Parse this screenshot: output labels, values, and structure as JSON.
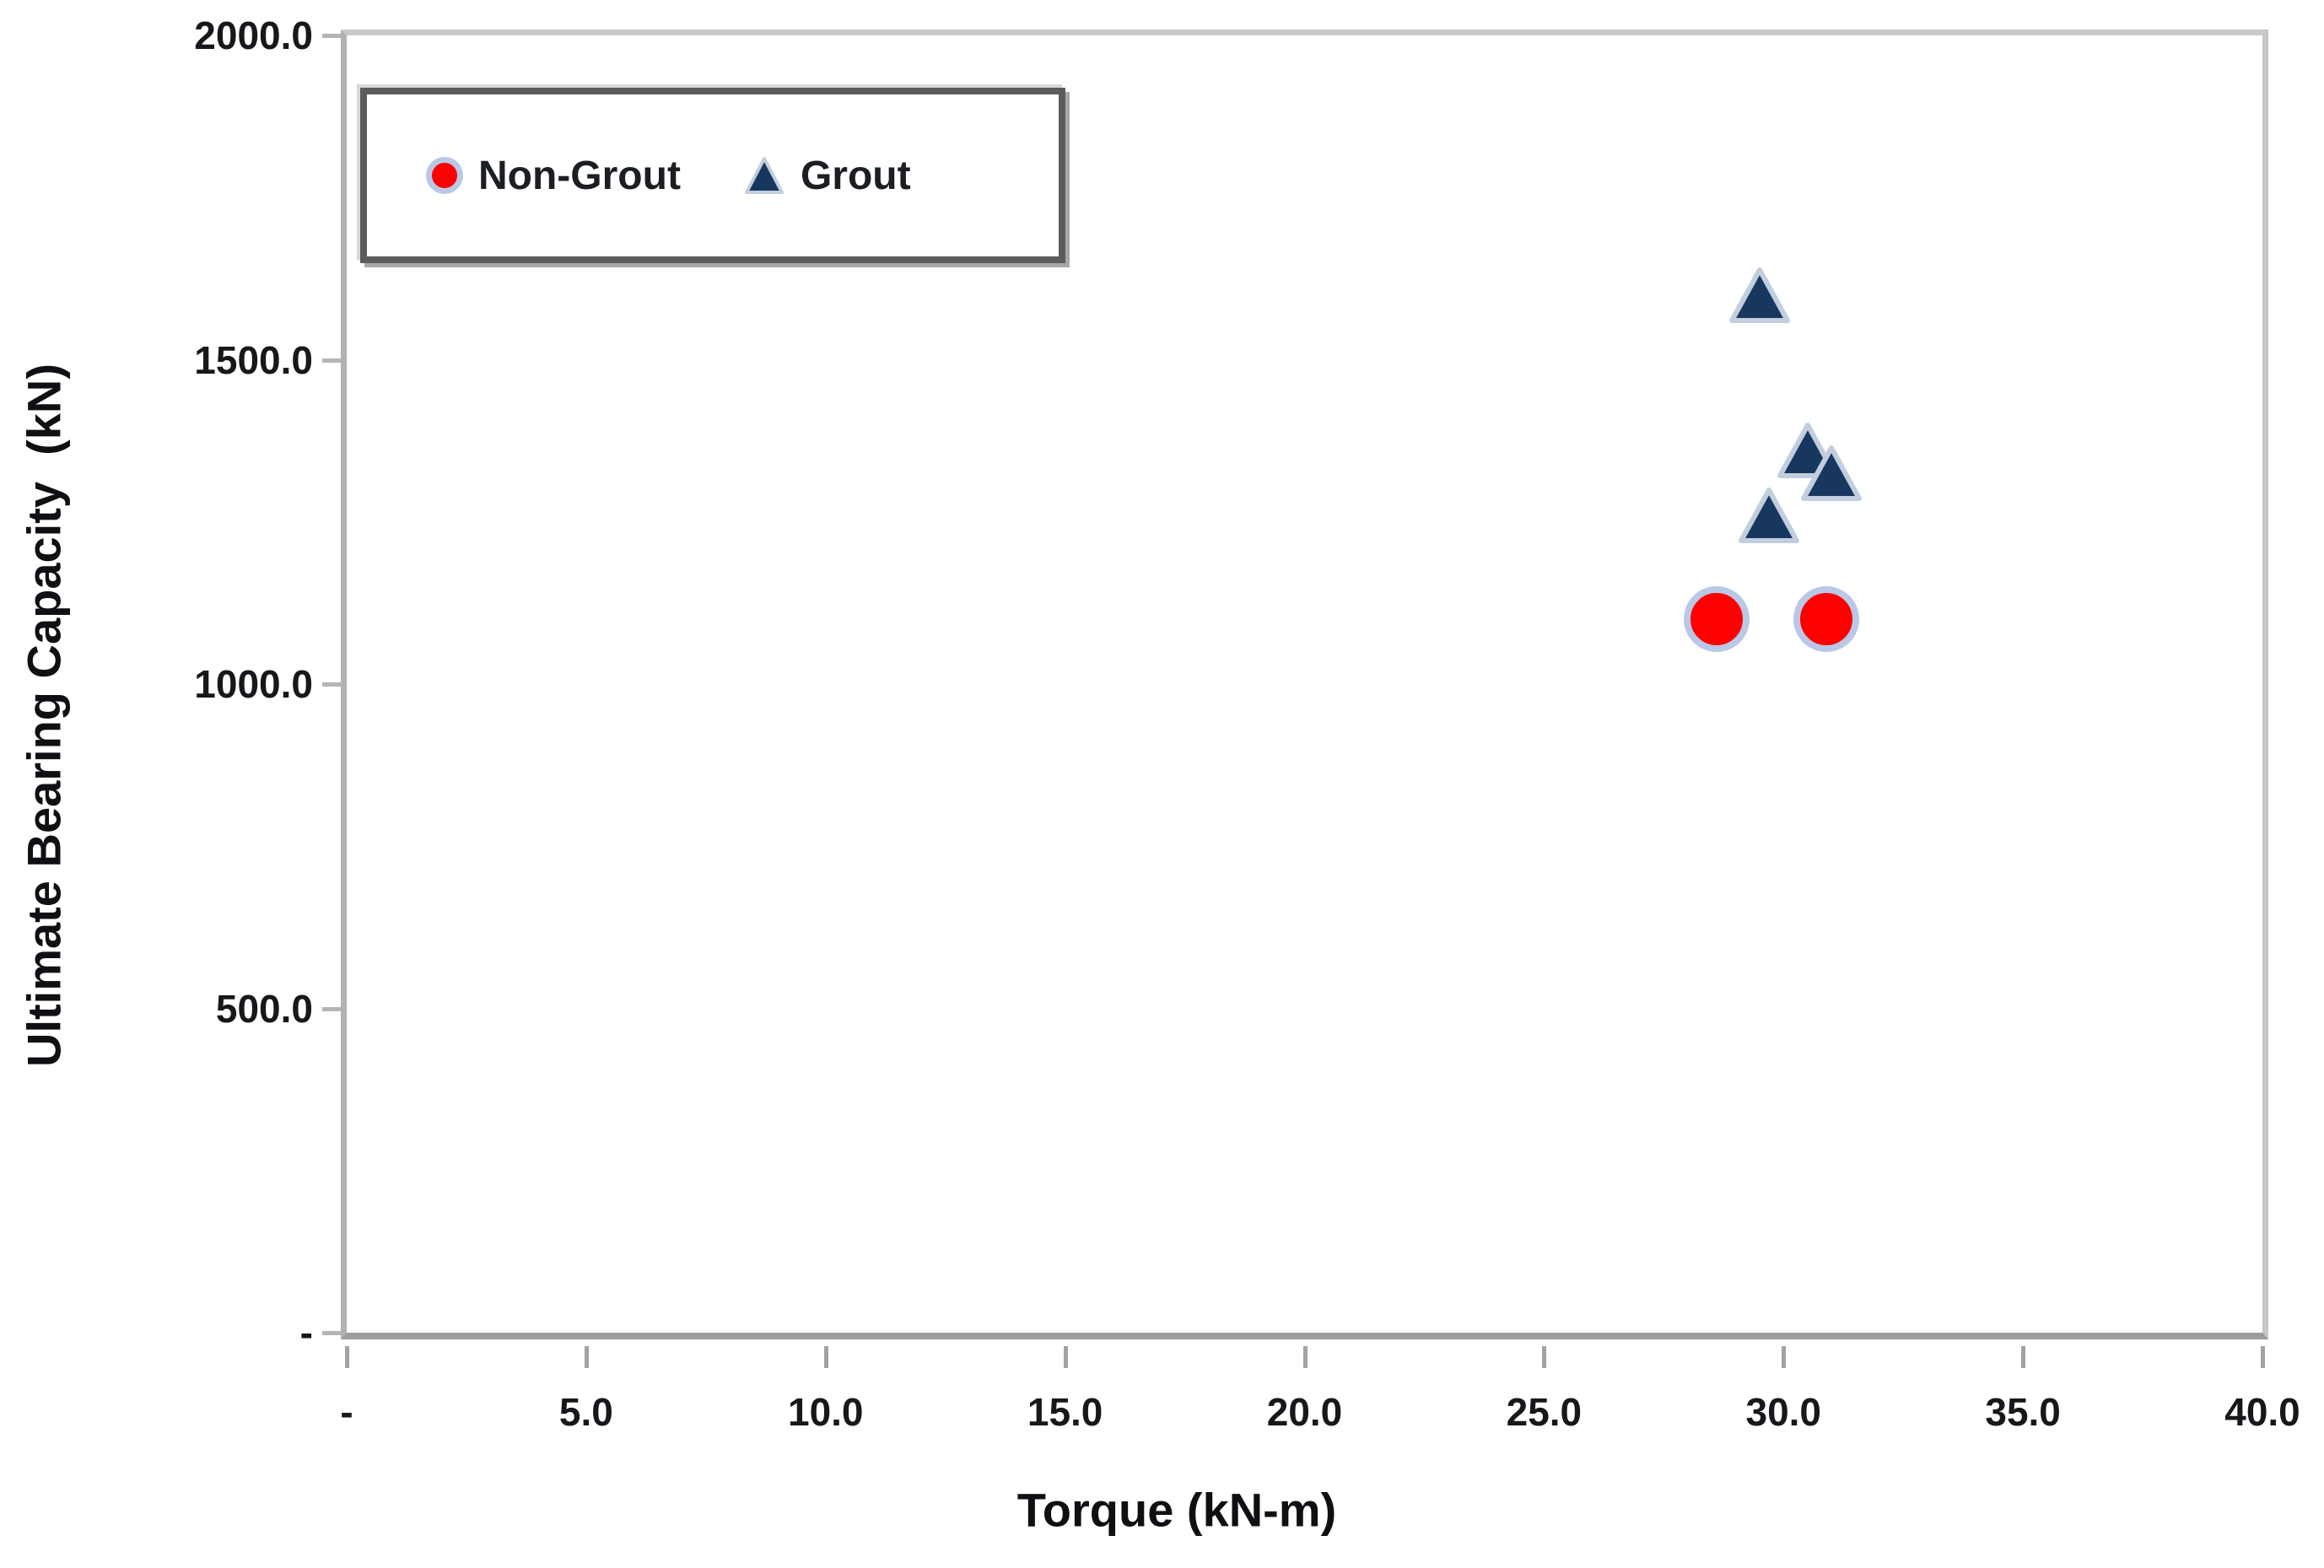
{
  "chart_data": {
    "type": "scatter",
    "title": "",
    "xlabel": "Torque (kN-m)",
    "ylabel": "Ultimate Bearing Capacity  (kN)",
    "xlim": [
      0,
      40
    ],
    "ylim": [
      0,
      2000
    ],
    "grid": false,
    "legend_position": "top-left",
    "x_ticks": {
      "values": [
        0,
        5,
        10,
        15,
        20,
        25,
        30,
        35,
        40
      ],
      "labels": [
        "-",
        "5.0",
        "10.0",
        "15.0",
        "20.0",
        "25.0",
        "30.0",
        "35.0",
        "40.0"
      ]
    },
    "y_ticks": {
      "values": [
        0,
        500,
        1000,
        1500,
        2000
      ],
      "labels": [
        "-",
        "500.0",
        "1000.0",
        "1500.0",
        "2000.0"
      ]
    },
    "series": [
      {
        "name": "Non-Grout",
        "marker": "circle",
        "fill": "#fe0000",
        "edge": "#b9c8e6",
        "points": [
          [
            28.6,
            1100
          ],
          [
            30.9,
            1100
          ]
        ]
      },
      {
        "name": "Grout",
        "marker": "triangle",
        "fill": "#17375e",
        "edge": "#c2cede",
        "points": [
          [
            29.5,
            1600
          ],
          [
            30.5,
            1360
          ],
          [
            31.0,
            1325
          ],
          [
            29.7,
            1260
          ]
        ]
      }
    ]
  },
  "colors": {
    "background": "#ffffff",
    "axis_line": "#9c9c9c",
    "plot_border": "#c8c8c8",
    "tick_label": "#17181c",
    "title_text": "#101014",
    "legend_border": "#5c5c5c",
    "non_grout_fill": "#fe0000",
    "grout_fill": "#17375e",
    "marker_edge": "#b9c8e6"
  }
}
